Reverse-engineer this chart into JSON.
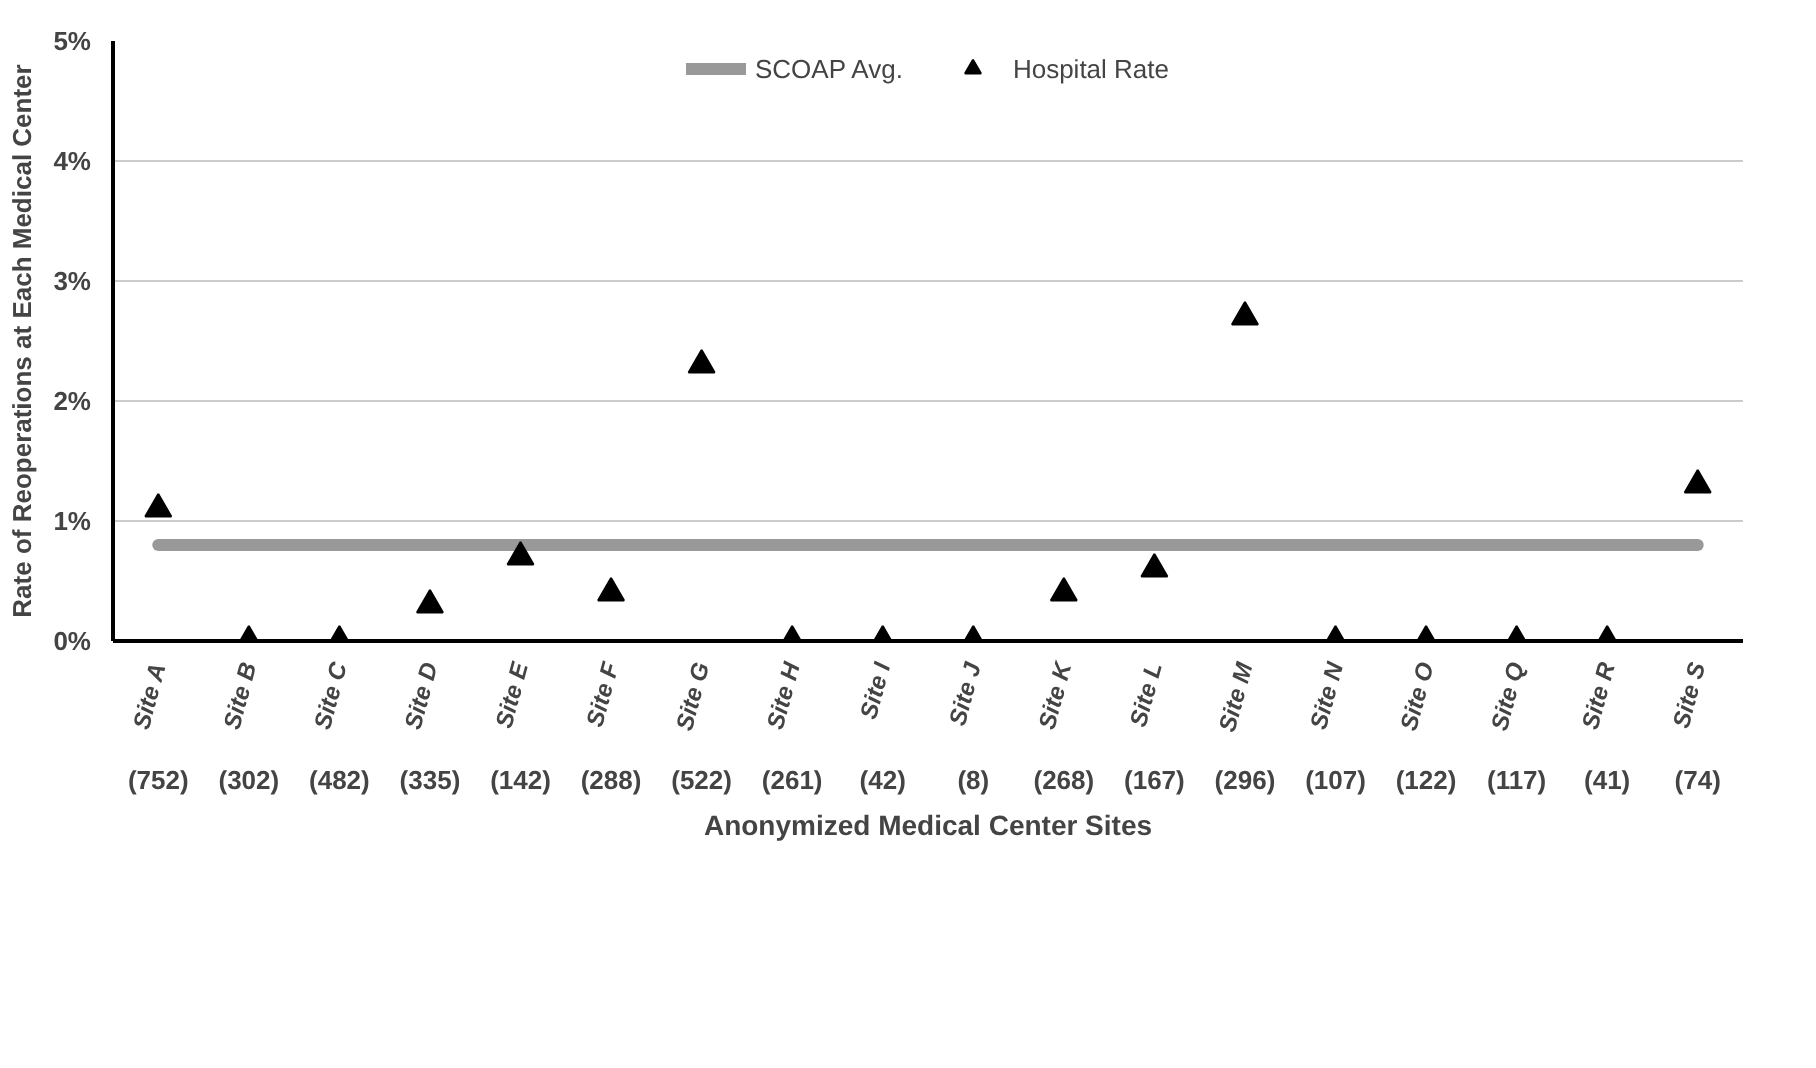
{
  "chart_data": {
    "type": "scatter",
    "xlabel": "Anonymized Medical Center Sites",
    "ylabel": "Rate of Reoperations at Each Medical Center",
    "categories": [
      "Site A",
      "Site B",
      "Site C",
      "Site D",
      "Site E",
      "Site F",
      "Site G",
      "Site H",
      "Site I",
      "Site J",
      "Site K",
      "Site L",
      "Site M",
      "Site N",
      "Site O",
      "Site Q",
      "Site R",
      "Site S"
    ],
    "series": [
      {
        "name": "SCOAP Avg.",
        "type": "line",
        "color": "#999999",
        "values": [
          0.8,
          0.8,
          0.8,
          0.8,
          0.8,
          0.8,
          0.8,
          0.8,
          0.8,
          0.8,
          0.8,
          0.8,
          0.8,
          0.8,
          0.8,
          0.8,
          0.8,
          0.8
        ]
      },
      {
        "name": "Hospital Rate",
        "color": "#000000",
        "marker": "triangle",
        "values": [
          1.1,
          0,
          0,
          0.3,
          0.7,
          0.4,
          2.3,
          0,
          0,
          0,
          0.4,
          0.6,
          2.7,
          0,
          0,
          0,
          0,
          1.3
        ]
      }
    ],
    "annotations": [
      "(752)",
      "(302)",
      "(482)",
      "(335)",
      "(142)",
      "(288)",
      "(522)",
      "(261)",
      "(42)",
      "(8)",
      "(268)",
      "(167)",
      "(296)",
      "(107)",
      "(122)",
      "(117)",
      "(41)",
      "(74)"
    ],
    "ylim": [
      0,
      5
    ],
    "yticks": [
      {
        "value": 0,
        "label": "0%"
      },
      {
        "value": 1,
        "label": "1%"
      },
      {
        "value": 2,
        "label": "2%"
      },
      {
        "value": 3,
        "label": "3%"
      },
      {
        "value": 4,
        "label": "4%"
      },
      {
        "value": 5,
        "label": "5%"
      }
    ],
    "grid": "y",
    "legend": "top"
  }
}
